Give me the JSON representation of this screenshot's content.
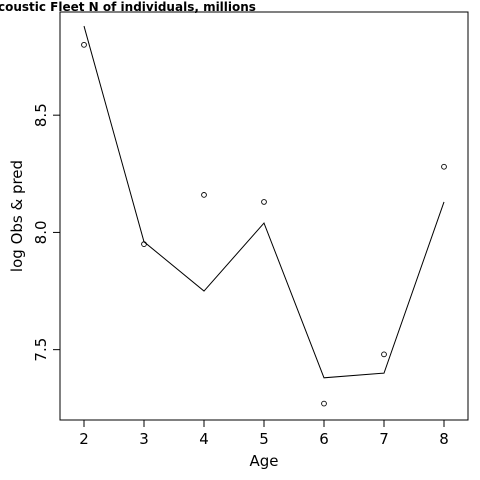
{
  "chart_data": {
    "type": "line",
    "title": "coustic Fleet   N of individuals, millions",
    "xlabel": "Age",
    "ylabel": "log Obs & pred",
    "x": [
      2,
      3,
      4,
      5,
      6,
      7,
      8
    ],
    "series": [
      {
        "values": [
          8.8,
          7.95,
          8.16,
          8.13,
          7.27,
          7.48,
          8.28
        ],
        "style": "points"
      },
      {
        "values": [
          8.88,
          7.96,
          7.75,
          8.04,
          7.38,
          7.4,
          8.13
        ],
        "style": "line"
      }
    ],
    "xlim": [
      1.6,
      8.4
    ],
    "ylim": [
      7.2,
      8.94
    ],
    "xticks": [
      "2",
      "3",
      "4",
      "5",
      "6",
      "7",
      "8"
    ],
    "yticks": [
      "7.5",
      "8.0",
      "8.5"
    ],
    "grid": false,
    "legend": "none",
    "colors": {
      "line": "#000000",
      "points": "#000000"
    }
  }
}
